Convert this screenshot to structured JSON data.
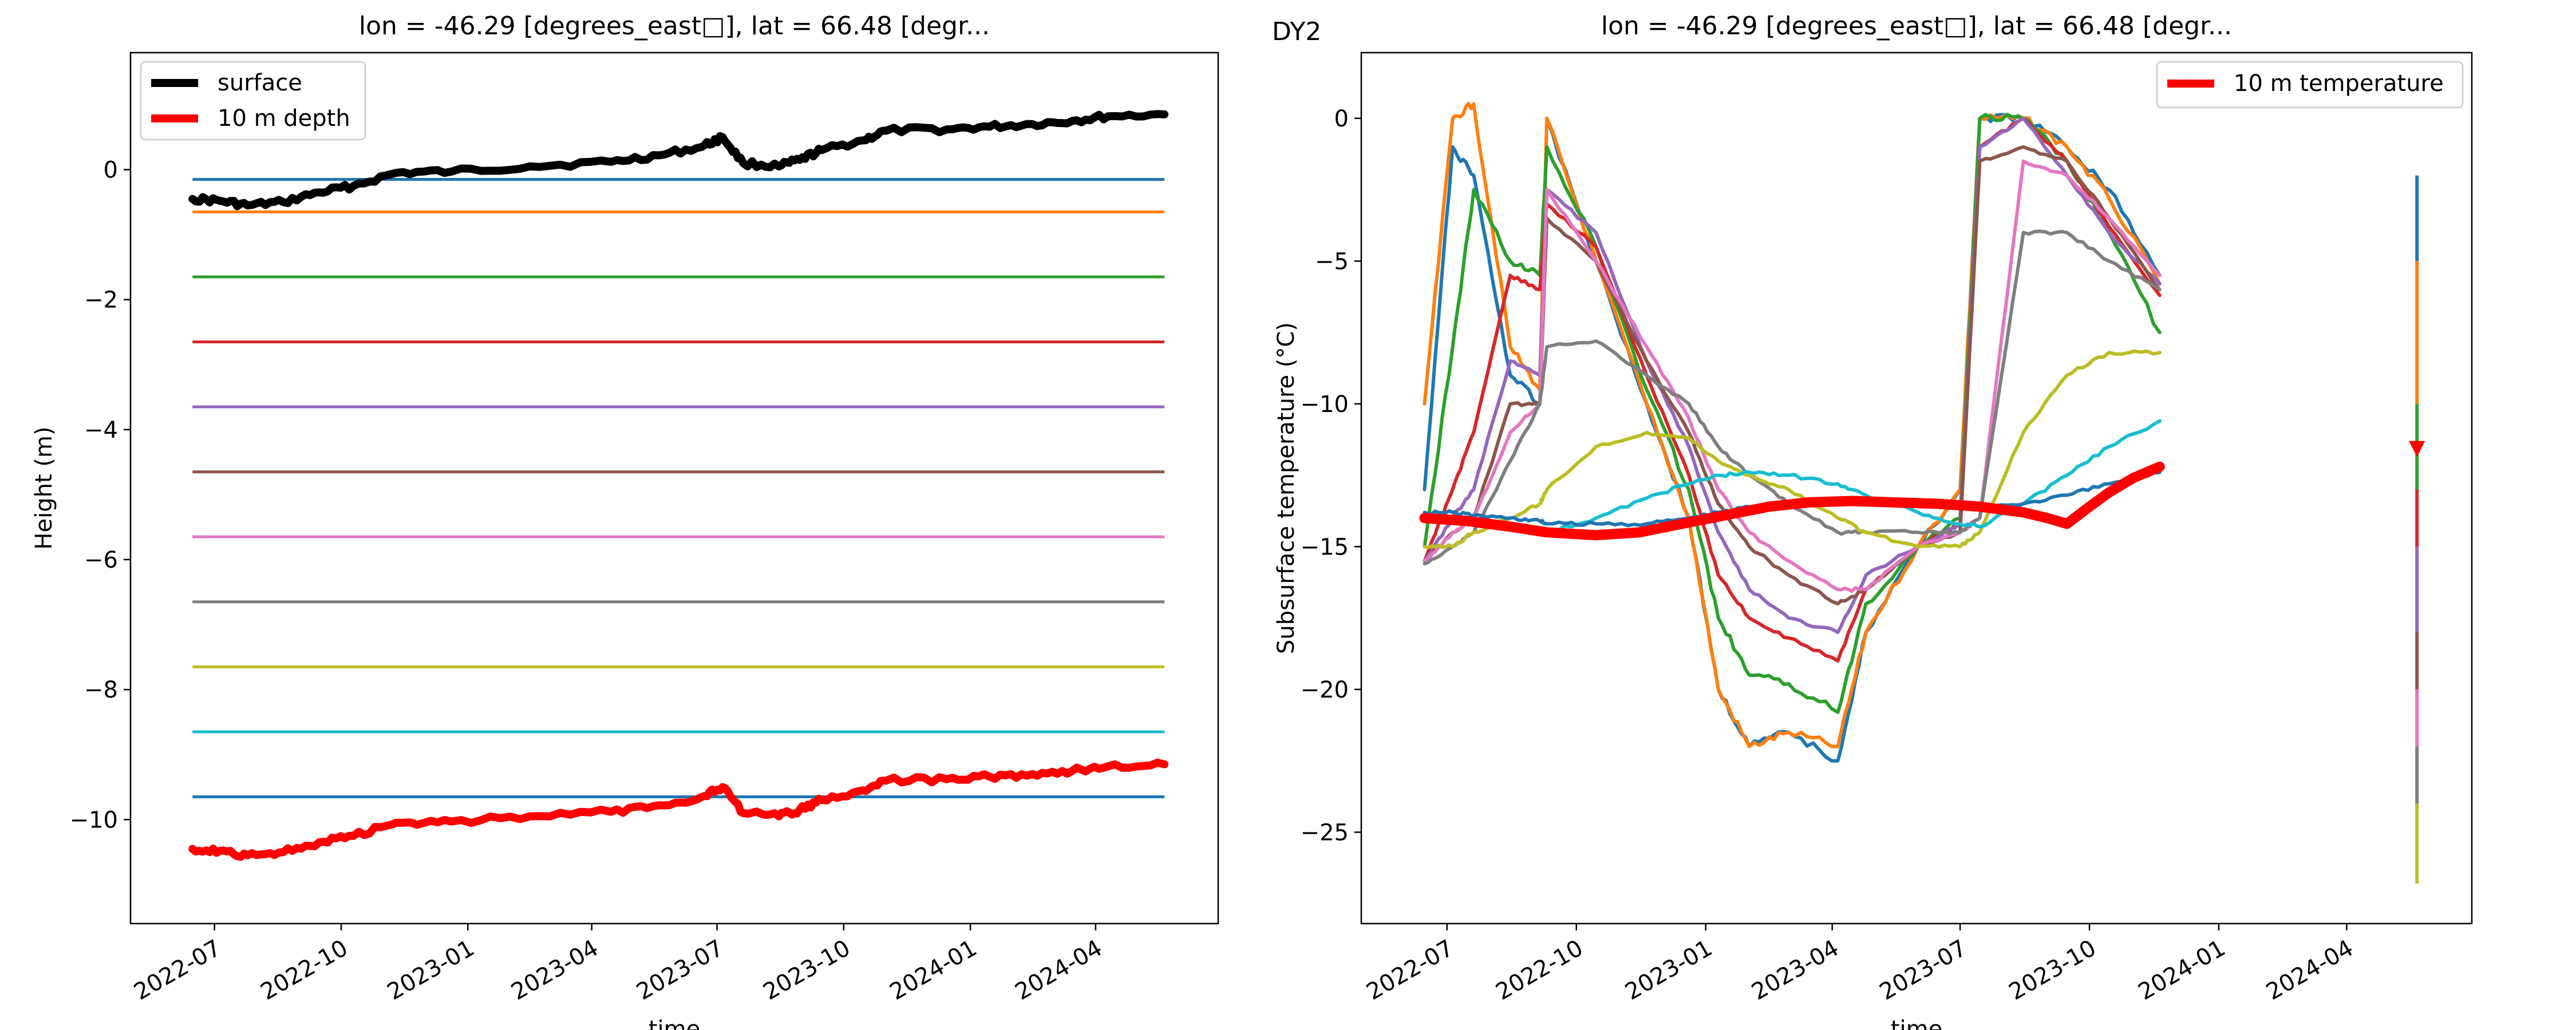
{
  "figure": {
    "label": "DY2"
  },
  "colors": {
    "cycle": [
      "#1f77b4",
      "#ff7f0e",
      "#2ca02c",
      "#d62728",
      "#9467bd",
      "#8c564b",
      "#e377c2",
      "#7f7f7f",
      "#bcbd22",
      "#17becf",
      "#1f77b4"
    ],
    "surface": "#000000",
    "depth": "#ff0000"
  },
  "chart_data": [
    {
      "type": "line",
      "title": "lon = -46.29 [degrees_east□], lat = 66.48 [degr...",
      "xlabel": "time",
      "ylabel": "Height (m)",
      "xlim": [
        "2022-05-01",
        "2024-06-29"
      ],
      "ylim": [
        -11.6,
        1.8
      ],
      "xticks": [
        "2022-07",
        "2022-10",
        "2023-01",
        "2023-04",
        "2023-07",
        "2023-10",
        "2024-01",
        "2024-04"
      ],
      "yticks": [
        0,
        -2,
        -4,
        -6,
        -8,
        -10
      ],
      "legend": {
        "position": "upper left",
        "entries": [
          "surface",
          "10 m depth"
        ]
      },
      "sensor_depths": [
        -0.15,
        -0.65,
        -1.65,
        -2.65,
        -3.65,
        -4.65,
        -5.65,
        -6.65,
        -7.65,
        -8.65,
        -9.65
      ],
      "sensor_range": [
        "2022-06-15",
        "2024-05-21"
      ],
      "series": [
        {
          "name": "surface",
          "x": [
            "2022-06-15",
            "2022-07-05",
            "2022-07-25",
            "2022-08-20",
            "2022-09-15",
            "2022-10-10",
            "2022-11-10",
            "2022-12-20",
            "2023-02-15",
            "2023-04-15",
            "2023-05-20",
            "2023-06-20",
            "2023-07-05",
            "2023-07-20",
            "2023-08-15",
            "2023-08-30",
            "2023-09-15",
            "2023-10-15",
            "2023-11-01",
            "2023-12-15",
            "2024-01-15",
            "2024-02-15",
            "2024-03-15",
            "2024-04-10",
            "2024-05-21"
          ],
          "y": [
            -0.45,
            -0.48,
            -0.55,
            -0.5,
            -0.35,
            -0.25,
            -0.05,
            -0.03,
            0.05,
            0.12,
            0.22,
            0.35,
            0.5,
            0.1,
            0.05,
            0.15,
            0.3,
            0.45,
            0.6,
            0.62,
            0.66,
            0.7,
            0.75,
            0.82,
            0.85
          ]
        },
        {
          "name": "10 m depth",
          "x": [
            "2022-06-15",
            "2022-07-05",
            "2022-07-25",
            "2022-08-20",
            "2022-09-15",
            "2022-10-10",
            "2022-11-10",
            "2022-12-20",
            "2023-02-15",
            "2023-04-15",
            "2023-05-20",
            "2023-06-20",
            "2023-07-05",
            "2023-07-20",
            "2023-08-15",
            "2023-08-30",
            "2023-09-15",
            "2023-10-15",
            "2023-11-01",
            "2023-12-15",
            "2024-01-15",
            "2024-02-15",
            "2024-03-15",
            "2024-04-10",
            "2024-05-21"
          ],
          "y": [
            -10.45,
            -10.48,
            -10.55,
            -10.5,
            -10.35,
            -10.25,
            -10.05,
            -10.03,
            -9.95,
            -9.88,
            -9.78,
            -9.65,
            -9.5,
            -9.9,
            -9.95,
            -9.85,
            -9.7,
            -9.55,
            -9.4,
            -9.38,
            -9.34,
            -9.3,
            -9.25,
            -9.18,
            -9.15
          ]
        }
      ]
    },
    {
      "type": "line",
      "title": "lon = -46.29 [degrees_east□], lat = 66.48 [degr...",
      "xlabel": "time",
      "ylabel": "Subsurface temperature (°C)",
      "xlim": [
        "2022-05-01",
        "2024-06-29"
      ],
      "ylim": [
        -28.2,
        2.3
      ],
      "xticks": [
        "2022-07",
        "2022-10",
        "2023-01",
        "2023-04",
        "2023-07",
        "2023-10",
        "2024-01",
        "2024-04"
      ],
      "yticks": [
        0,
        -5,
        -10,
        -15,
        -20,
        -25
      ],
      "legend": {
        "position": "upper right",
        "entries": [
          "10 m temperature"
        ]
      },
      "series": [
        {
          "x": [
            "2022-06-15",
            "2022-07-05",
            "2022-07-20",
            "2022-08-15",
            "2022-09-05",
            "2022-09-10",
            "2022-10-15",
            "2022-11-20",
            "2022-12-20",
            "2023-01-10",
            "2023-02-01",
            "2023-03-01",
            "2023-04-05",
            "2023-04-25",
            "2023-06-01",
            "2023-07-01",
            "2023-07-15",
            "2023-08-15",
            "2023-09-15",
            "2023-10-15",
            "2023-11-20"
          ],
          "y": [
            -13,
            -1,
            -2,
            -9,
            -10,
            0,
            -5,
            -10,
            -14,
            -20,
            -22,
            -21.5,
            -22.5,
            -18,
            -15,
            -13,
            0,
            0,
            -1,
            -2.5,
            -5.5
          ]
        },
        {
          "x": [
            "2022-06-15",
            "2022-07-05",
            "2022-07-20",
            "2022-08-15",
            "2022-09-05",
            "2022-09-10",
            "2022-10-15",
            "2022-11-20",
            "2022-12-20",
            "2023-01-10",
            "2023-02-01",
            "2023-03-01",
            "2023-04-05",
            "2023-04-25",
            "2023-06-01",
            "2023-07-01",
            "2023-07-15",
            "2023-08-15",
            "2023-09-15",
            "2023-10-15",
            "2023-11-20"
          ],
          "y": [
            -10,
            0,
            0.5,
            -8,
            -9.5,
            0,
            -5,
            -10,
            -14,
            -20,
            -22,
            -21.5,
            -22,
            -18,
            -15,
            -13,
            0,
            0,
            -1,
            -2.8,
            -5.8
          ]
        },
        {
          "x": [
            "2022-06-15",
            "2022-07-05",
            "2022-07-20",
            "2022-08-15",
            "2022-09-05",
            "2022-09-10",
            "2022-10-15",
            "2022-11-20",
            "2022-12-20",
            "2023-01-10",
            "2023-02-01",
            "2023-03-01",
            "2023-04-05",
            "2023-04-25",
            "2023-06-01",
            "2023-07-01",
            "2023-07-15",
            "2023-08-15",
            "2023-09-15",
            "2023-10-15",
            "2023-11-20"
          ],
          "y": [
            -15,
            -8,
            -2.5,
            -5,
            -5.5,
            -1,
            -4.5,
            -9.5,
            -13,
            -17.5,
            -19.5,
            -19.8,
            -20.8,
            -17,
            -15,
            -14,
            0,
            0,
            -1.5,
            -4,
            -7.5
          ]
        },
        {
          "x": [
            "2022-06-15",
            "2022-07-05",
            "2022-07-20",
            "2022-08-15",
            "2022-09-05",
            "2022-09-10",
            "2022-10-15",
            "2022-11-20",
            "2022-12-20",
            "2023-01-10",
            "2023-02-01",
            "2023-03-01",
            "2023-04-05",
            "2023-04-25",
            "2023-06-01",
            "2023-07-01",
            "2023-07-15",
            "2023-08-15",
            "2023-09-15",
            "2023-10-15",
            "2023-11-20"
          ],
          "y": [
            -15.5,
            -13,
            -11,
            -5.5,
            -6,
            -3,
            -4.5,
            -9,
            -12.5,
            -16,
            -17.5,
            -18.2,
            -19,
            -16.5,
            -15,
            -14.2,
            -1,
            0,
            -1.5,
            -3.8,
            -6.2
          ]
        },
        {
          "x": [
            "2022-06-15",
            "2022-07-05",
            "2022-07-20",
            "2022-08-15",
            "2022-09-05",
            "2022-09-10",
            "2022-10-15",
            "2022-11-20",
            "2022-12-20",
            "2023-01-10",
            "2023-02-01",
            "2023-03-01",
            "2023-04-05",
            "2023-04-25",
            "2023-06-01",
            "2023-07-01",
            "2023-07-15",
            "2023-08-15",
            "2023-09-15",
            "2023-10-15",
            "2023-11-20"
          ],
          "y": [
            -15.5,
            -14,
            -13,
            -8.5,
            -9,
            -2.5,
            -4,
            -8.5,
            -11.5,
            -14.5,
            -16.5,
            -17.5,
            -18,
            -16,
            -15,
            -14.2,
            -1,
            0,
            -2,
            -4,
            -5.8
          ]
        },
        {
          "x": [
            "2022-06-15",
            "2022-07-05",
            "2022-07-20",
            "2022-08-15",
            "2022-09-05",
            "2022-09-10",
            "2022-10-15",
            "2022-11-20",
            "2022-12-20",
            "2023-01-10",
            "2023-02-01",
            "2023-03-01",
            "2023-04-05",
            "2023-04-25",
            "2023-06-01",
            "2023-07-01",
            "2023-07-15",
            "2023-08-15",
            "2023-09-15",
            "2023-10-15",
            "2023-11-20"
          ],
          "y": [
            -15.5,
            -14.5,
            -14,
            -10,
            -10,
            -3.5,
            -5,
            -8.5,
            -11,
            -13.5,
            -15,
            -16,
            -17,
            -16.5,
            -15,
            -14.5,
            -1.5,
            -1,
            -1.5,
            -3.5,
            -6
          ]
        },
        {
          "x": [
            "2022-06-15",
            "2022-07-05",
            "2022-07-20",
            "2022-08-15",
            "2022-09-05",
            "2022-09-10",
            "2022-10-15",
            "2022-11-20",
            "2022-12-20",
            "2023-01-10",
            "2023-02-01",
            "2023-03-01",
            "2023-04-05",
            "2023-04-25",
            "2023-06-01",
            "2023-07-01",
            "2023-07-15",
            "2023-08-15",
            "2023-09-15",
            "2023-10-15",
            "2023-11-20"
          ],
          "y": [
            -15.5,
            -14.5,
            -14,
            -11,
            -10,
            -2.5,
            -5,
            -8,
            -10.5,
            -13,
            -14.5,
            -15.5,
            -16.5,
            -16.5,
            -15,
            -14.5,
            -14,
            -1.5,
            -2,
            -3.5,
            -5.5
          ]
        },
        {
          "x": [
            "2022-06-15",
            "2022-07-05",
            "2022-07-20",
            "2022-08-15",
            "2022-09-05",
            "2022-09-10",
            "2022-10-15",
            "2022-11-20",
            "2022-12-20",
            "2023-01-10",
            "2023-02-01",
            "2023-03-01",
            "2023-04-05",
            "2023-04-25",
            "2023-06-01",
            "2023-07-01",
            "2023-07-15",
            "2023-08-15",
            "2023-09-15",
            "2023-10-15",
            "2023-11-20"
          ],
          "y": [
            -15.6,
            -15,
            -14.5,
            -12,
            -10,
            -8,
            -7.8,
            -9,
            -10,
            -11.5,
            -12.5,
            -13.5,
            -14.5,
            -14.5,
            -14.5,
            -14.5,
            -14,
            -4,
            -4,
            -5,
            -6
          ]
        },
        {
          "x": [
            "2022-06-15",
            "2022-07-05",
            "2022-07-20",
            "2022-08-15",
            "2022-09-05",
            "2022-09-10",
            "2022-10-15",
            "2022-11-20",
            "2022-12-20",
            "2023-01-10",
            "2023-02-01",
            "2023-03-01",
            "2023-04-05",
            "2023-04-25",
            "2023-06-01",
            "2023-07-01",
            "2023-07-15",
            "2023-08-15",
            "2023-09-15",
            "2023-10-15",
            "2023-11-20"
          ],
          "y": [
            -15,
            -15,
            -14.5,
            -14,
            -13.5,
            -13,
            -11.5,
            -11,
            -11.2,
            -12,
            -12.5,
            -13,
            -14,
            -14.5,
            -15,
            -15,
            -14.5,
            -11,
            -9,
            -8.2,
            -8.2
          ]
        },
        {
          "x": [
            "2022-06-15",
            "2022-07-05",
            "2022-07-20",
            "2022-08-15",
            "2022-09-05",
            "2022-09-10",
            "2022-10-15",
            "2022-11-20",
            "2022-12-20",
            "2023-01-10",
            "2023-02-01",
            "2023-03-01",
            "2023-04-05",
            "2023-04-25",
            "2023-06-01",
            "2023-07-01",
            "2023-07-15",
            "2023-08-15",
            "2023-09-15",
            "2023-10-15",
            "2023-11-20"
          ],
          "y": [
            -14,
            -14,
            -14,
            -14.3,
            -14.5,
            -14.5,
            -14,
            -13.3,
            -12.8,
            -12.5,
            -12.4,
            -12.5,
            -12.8,
            -13.2,
            -13.8,
            -14.2,
            -14.3,
            -13.5,
            -12.5,
            -11.5,
            -10.6
          ]
        },
        {
          "x": [
            "2022-06-15",
            "2022-07-05",
            "2022-07-20",
            "2022-08-15",
            "2022-09-05",
            "2022-09-10",
            "2022-10-15",
            "2022-11-20",
            "2022-12-20",
            "2023-01-10",
            "2023-02-01",
            "2023-03-01",
            "2023-04-05",
            "2023-04-25",
            "2023-06-01",
            "2023-07-01",
            "2023-07-15",
            "2023-08-15",
            "2023-09-15",
            "2023-10-15",
            "2023-11-20"
          ],
          "y": [
            -13.8,
            -13.8,
            -13.9,
            -14,
            -14.1,
            -14.2,
            -14.2,
            -14.2,
            -14,
            -13.8,
            -13.6,
            -13.5,
            -13.4,
            -13.4,
            -13.5,
            -13.6,
            -13.6,
            -13.5,
            -13.2,
            -12.8,
            -12.4
          ]
        },
        {
          "name": "10 m temperature",
          "x": [
            "2022-06-15",
            "2022-07-15",
            "2022-08-15",
            "2022-09-10",
            "2022-10-15",
            "2022-11-15",
            "2022-12-15",
            "2023-01-15",
            "2023-02-15",
            "2023-03-15",
            "2023-04-15",
            "2023-05-15",
            "2023-06-15",
            "2023-07-15",
            "2023-08-15",
            "2023-09-01",
            "2023-09-15",
            "2023-10-01",
            "2023-10-15",
            "2023-11-01",
            "2023-11-20"
          ],
          "y": [
            -14,
            -14.1,
            -14.3,
            -14.5,
            -14.6,
            -14.5,
            -14.2,
            -13.9,
            -13.6,
            -13.45,
            -13.4,
            -13.45,
            -13.5,
            -13.6,
            -13.8,
            -14,
            -14.2,
            -13.6,
            -13.1,
            -12.6,
            -12.2
          ]
        }
      ],
      "end_spike": {
        "x": "2024-05-21",
        "ymin": -26.8,
        "ymax": -2.0,
        "marker_y": -11.7
      }
    }
  ]
}
